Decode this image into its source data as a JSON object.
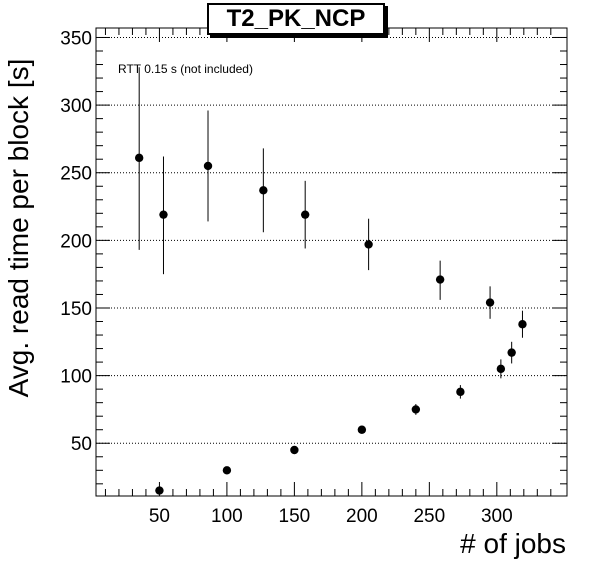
{
  "chart_data": {
    "type": "scatter",
    "title": "T2_PK_NCP",
    "xlabel": "# of jobs",
    "ylabel": "Avg. read time per block [s]",
    "annotation": "RTT 0.15 s (not included)",
    "xlim": [
      3,
      352
    ],
    "ylim": [
      11,
      357
    ],
    "x_ticks": [
      50,
      100,
      150,
      200,
      250,
      300
    ],
    "y_ticks": [
      50,
      100,
      150,
      200,
      250,
      300,
      350
    ],
    "grid": "horizontal dotted",
    "series": [
      {
        "points": [
          {
            "x": 35,
            "y": 261,
            "err_low": 68,
            "err_high": 67
          },
          {
            "x": 53,
            "y": 219,
            "err_low": 44,
            "err_high": 43
          },
          {
            "x": 86,
            "y": 255,
            "err_low": 41,
            "err_high": 41
          },
          {
            "x": 127,
            "y": 237,
            "err_low": 31,
            "err_high": 31
          },
          {
            "x": 158,
            "y": 219,
            "err_low": 25,
            "err_high": 25
          },
          {
            "x": 205,
            "y": 197,
            "err_low": 19,
            "err_high": 19
          },
          {
            "x": 258,
            "y": 171,
            "err_low": 15,
            "err_high": 14
          },
          {
            "x": 295,
            "y": 154,
            "err_low": 12,
            "err_high": 12
          },
          {
            "x": 319,
            "y": 138,
            "err_low": 10,
            "err_high": 10
          },
          {
            "x": 311,
            "y": 117,
            "err_low": 8,
            "err_high": 8
          },
          {
            "x": 303,
            "y": 105,
            "err_low": 7,
            "err_high": 7
          },
          {
            "x": 273,
            "y": 88,
            "err_low": 5,
            "err_high": 5
          },
          {
            "x": 240,
            "y": 75,
            "err_low": 4,
            "err_high": 4
          },
          {
            "x": 200,
            "y": 60,
            "err_low": 3,
            "err_high": 3
          },
          {
            "x": 150,
            "y": 45,
            "err_low": 2,
            "err_high": 2
          },
          {
            "x": 100,
            "y": 30,
            "err_low": 2,
            "err_high": 2
          },
          {
            "x": 50,
            "y": 15,
            "err_low": 1,
            "err_high": 1
          }
        ]
      }
    ]
  }
}
